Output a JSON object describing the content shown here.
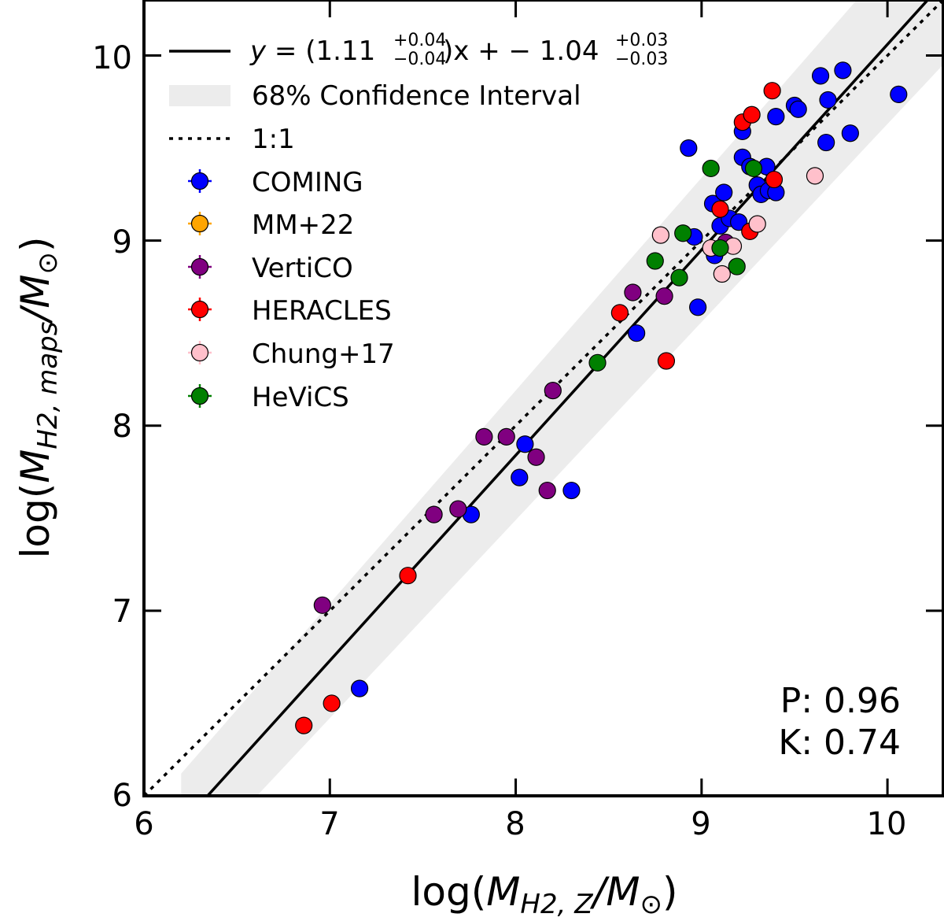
{
  "chart_data": {
    "type": "scatter",
    "xlabel": "log(M_H2,Z/M_⊙)",
    "ylabel": "log(M_H2,maps/M_⊙)",
    "xlabel_parts": {
      "prefix": "log(",
      "main": "M",
      "sub": "H2, Z",
      "slash": "/",
      "main2": "M",
      "sub2": "⊙",
      "suffix": ")"
    },
    "ylabel_parts": {
      "prefix": "log(",
      "main": "M",
      "sub": "H2, maps",
      "slash": "/",
      "main2": "M",
      "sub2": "⊙",
      "suffix": ")"
    },
    "xlim": [
      6.0,
      10.3
    ],
    "ylim": [
      6.0,
      10.3
    ],
    "xticks": [
      "6",
      "7",
      "8",
      "9",
      "10"
    ],
    "yticks": [
      "6",
      "7",
      "8",
      "9",
      "10"
    ],
    "fit": {
      "slope": 1.11,
      "intercept": -1.04,
      "slope_text": "1.11",
      "slope_err_up": "+0.04",
      "slope_err_down": "−0.04",
      "intercept_text": "1.04",
      "intercept_err_up": "+0.03",
      "intercept_err_down": "−0.03",
      "eq_y": "y",
      "eq_eq": " = (",
      "eq_x": ")x + − "
    },
    "confidence_label": "68% Confidence Interval",
    "identity_label": "1:1",
    "stats": {
      "P": "P: 0.96",
      "K": "K: 0.74"
    },
    "series": [
      {
        "name": "COMING",
        "color": "#0000ff",
        "points": [
          [
            7.16,
            6.58
          ],
          [
            7.76,
            7.52
          ],
          [
            8.02,
            7.72
          ],
          [
            8.05,
            7.9
          ],
          [
            8.3,
            7.65
          ],
          [
            8.65,
            8.5
          ],
          [
            8.98,
            8.64
          ],
          [
            8.93,
            9.5
          ],
          [
            8.96,
            9.02
          ],
          [
            9.06,
            9.2
          ],
          [
            9.07,
            8.92
          ],
          [
            9.1,
            9.08
          ],
          [
            9.12,
            9.26
          ],
          [
            9.15,
            9.12
          ],
          [
            9.2,
            9.1
          ],
          [
            9.22,
            9.45
          ],
          [
            9.22,
            9.59
          ],
          [
            9.26,
            9.4
          ],
          [
            9.3,
            9.3
          ],
          [
            9.32,
            9.25
          ],
          [
            9.35,
            9.4
          ],
          [
            9.36,
            9.27
          ],
          [
            9.4,
            9.26
          ],
          [
            9.4,
            9.67
          ],
          [
            9.5,
            9.73
          ],
          [
            9.52,
            9.71
          ],
          [
            9.64,
            9.89
          ],
          [
            9.67,
            9.53
          ],
          [
            9.68,
            9.76
          ],
          [
            9.76,
            9.92
          ],
          [
            9.8,
            9.58
          ],
          [
            10.06,
            9.79
          ]
        ]
      },
      {
        "name": "MM+22",
        "color": "#ffa500",
        "points": []
      },
      {
        "name": "VertiCO",
        "color": "#800080",
        "points": [
          [
            6.96,
            7.03
          ],
          [
            7.56,
            7.52
          ],
          [
            7.69,
            7.55
          ],
          [
            7.83,
            7.94
          ],
          [
            7.95,
            7.94
          ],
          [
            8.11,
            7.83
          ],
          [
            8.17,
            7.65
          ],
          [
            8.2,
            8.19
          ],
          [
            8.63,
            8.72
          ],
          [
            8.8,
            8.7
          ],
          [
            9.13,
            8.99
          ]
        ]
      },
      {
        "name": "HERACLES",
        "color": "#ff0000",
        "points": [
          [
            6.86,
            6.38
          ],
          [
            7.01,
            6.5
          ],
          [
            7.42,
            7.19
          ],
          [
            8.56,
            8.61
          ],
          [
            8.81,
            8.35
          ],
          [
            9.1,
            9.17
          ],
          [
            9.22,
            9.64
          ],
          [
            9.27,
            9.68
          ],
          [
            9.26,
            9.05
          ],
          [
            9.38,
            9.81
          ],
          [
            9.39,
            9.33
          ]
        ]
      },
      {
        "name": "Chung+17",
        "color": "#ffc0cb",
        "points": [
          [
            8.78,
            9.03
          ],
          [
            9.05,
            8.96
          ],
          [
            9.11,
            8.82
          ],
          [
            9.17,
            8.97
          ],
          [
            9.3,
            9.09
          ],
          [
            9.61,
            9.35
          ]
        ]
      },
      {
        "name": "HeViCS",
        "color": "#008000",
        "points": [
          [
            8.44,
            8.34
          ],
          [
            8.75,
            8.89
          ],
          [
            8.88,
            8.8
          ],
          [
            8.9,
            9.04
          ],
          [
            9.05,
            9.39
          ],
          [
            9.1,
            8.96
          ],
          [
            9.19,
            8.86
          ],
          [
            9.28,
            9.39
          ]
        ]
      }
    ]
  }
}
